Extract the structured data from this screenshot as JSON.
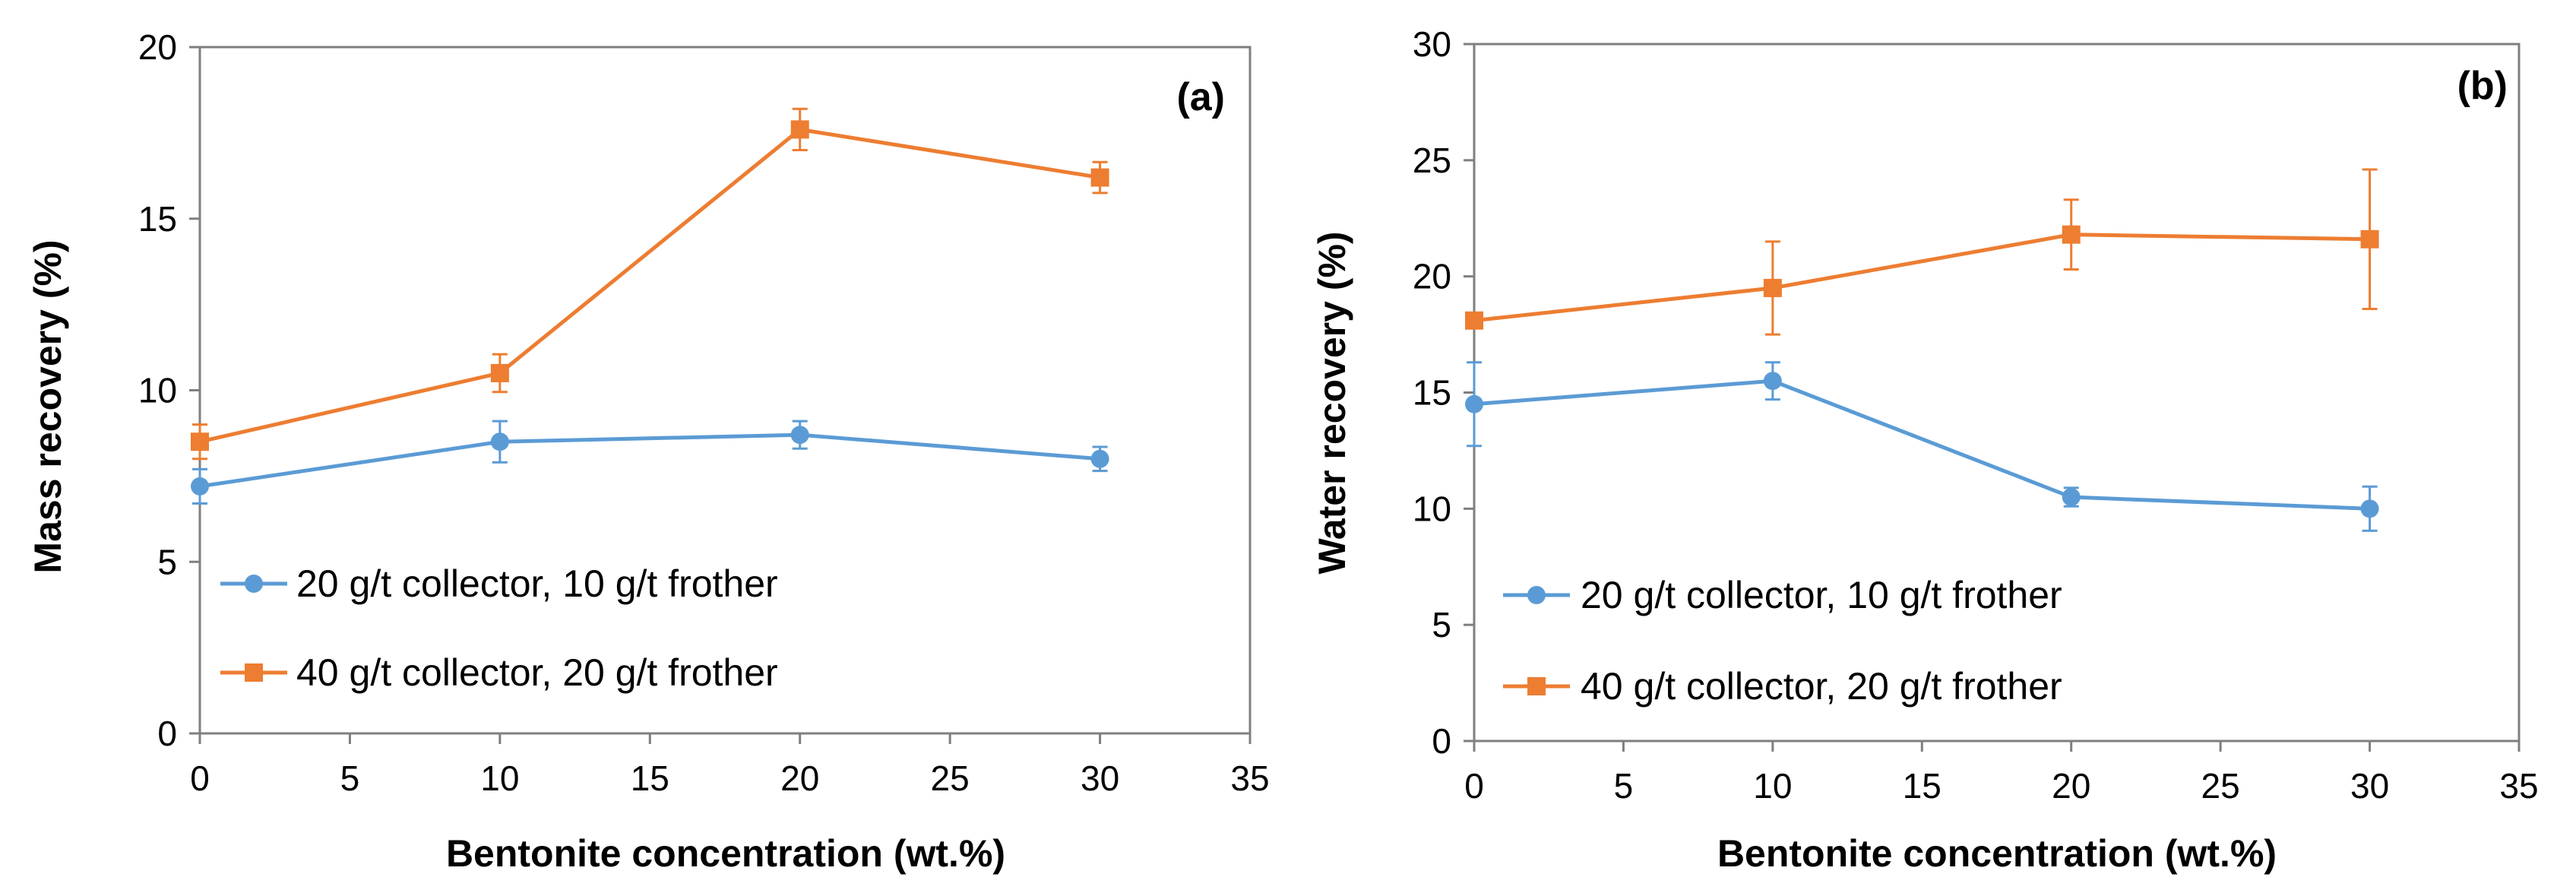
{
  "chart_data": [
    {
      "type": "line",
      "panel_label": "(a)",
      "xlabel": "Bentonite concentration (wt.%)",
      "ylabel": "Mass recovery (%)",
      "xlim": [
        0,
        35
      ],
      "ylim": [
        0,
        20
      ],
      "xticks": [
        "0",
        "5",
        "10",
        "15",
        "20",
        "25",
        "30",
        "35"
      ],
      "yticks": [
        "0",
        "5",
        "10",
        "15",
        "20"
      ],
      "grid": false,
      "legend_position": "bottom-left",
      "series": [
        {
          "name": "20 g/t collector, 10 g/t frother",
          "color": "#5B9BD5",
          "marker": "circle",
          "x": [
            0,
            10,
            20,
            30
          ],
          "y": [
            7.2,
            8.5,
            8.7,
            8.0
          ],
          "err": [
            0.5,
            0.6,
            0.4,
            0.35
          ]
        },
        {
          "name": "40 g/t collector, 20 g/t frother",
          "color": "#ED7D31",
          "marker": "square",
          "x": [
            0,
            10,
            20,
            30
          ],
          "y": [
            8.5,
            10.5,
            17.6,
            16.2
          ],
          "err": [
            0.5,
            0.55,
            0.6,
            0.45
          ]
        }
      ]
    },
    {
      "type": "line",
      "panel_label": "(b)",
      "xlabel": "Bentonite concentration (wt.%)",
      "ylabel": "Water recovery (%)",
      "xlim": [
        0,
        35
      ],
      "ylim": [
        0,
        30
      ],
      "xticks": [
        "0",
        "5",
        "10",
        "15",
        "20",
        "25",
        "30",
        "35"
      ],
      "yticks": [
        "0",
        "5",
        "10",
        "15",
        "20",
        "25",
        "30"
      ],
      "grid": false,
      "legend_position": "bottom-left",
      "series": [
        {
          "name": "20 g/t collector, 10 g/t frother",
          "color": "#5B9BD5",
          "marker": "circle",
          "x": [
            0,
            10,
            20,
            30
          ],
          "y": [
            14.5,
            15.5,
            10.5,
            10.0
          ],
          "err": [
            1.8,
            0.8,
            0.4,
            0.95
          ]
        },
        {
          "name": "40 g/t collector, 20 g/t frother",
          "color": "#ED7D31",
          "marker": "square",
          "x": [
            0,
            10,
            20,
            30
          ],
          "y": [
            18.1,
            19.5,
            21.8,
            21.6
          ],
          "err": [
            0.25,
            2.0,
            1.5,
            3.0
          ]
        }
      ]
    }
  ]
}
